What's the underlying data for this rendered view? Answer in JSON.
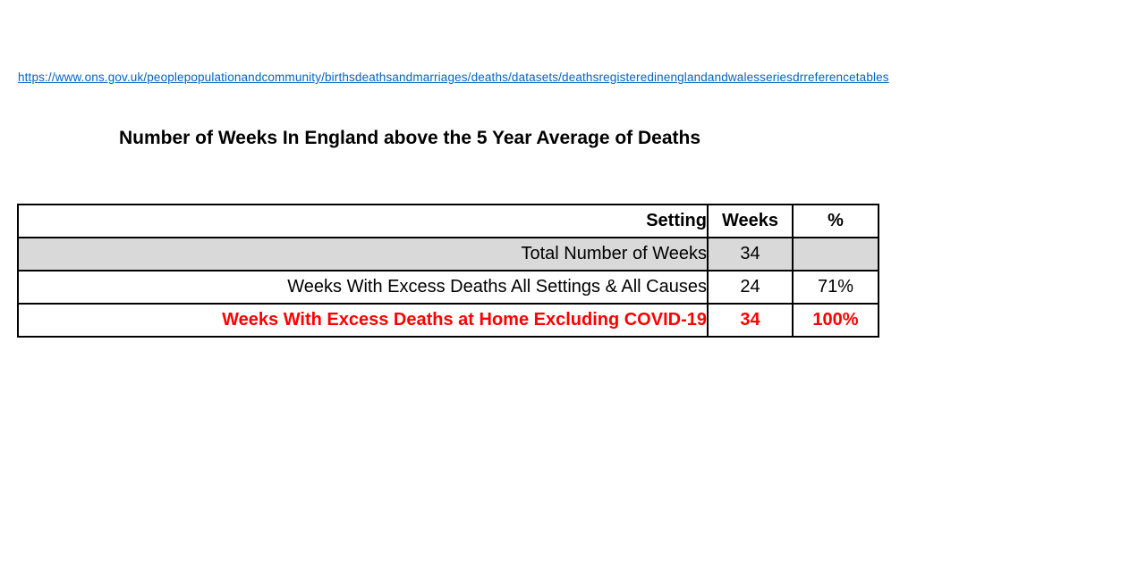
{
  "page": {
    "background": "#FFFFFF"
  },
  "link": {
    "text": "https://www.ons.gov.uk/peoplepopulationandcommunity/birthsdeathsandmarriages/deaths/datasets/deathsregisteredinenglandandwalesseriesdrreferencetables",
    "color": "#0563C1"
  },
  "title": {
    "text": "Number of Weeks In England above the 5 Year Average of Deaths"
  },
  "table": {
    "headers": {
      "setting": "Setting",
      "weeks": "Weeks",
      "percent": "%"
    },
    "rows": [
      {
        "setting": "Total Number of Weeks",
        "weeks": "34",
        "percent": "",
        "style": "highlight"
      },
      {
        "setting": "Weeks With Excess Deaths All Settings & All Causes",
        "weeks": "24",
        "percent": "71%",
        "style": "normal"
      },
      {
        "setting": "Weeks With Excess Deaths at Home Excluding COVID-19",
        "weeks": "34",
        "percent": "100%",
        "style": "emphasis"
      }
    ],
    "colors": {
      "highlight_row_bg": "#D9D9D9",
      "emphasis_text": "#FF0000",
      "border": "#000000"
    }
  }
}
